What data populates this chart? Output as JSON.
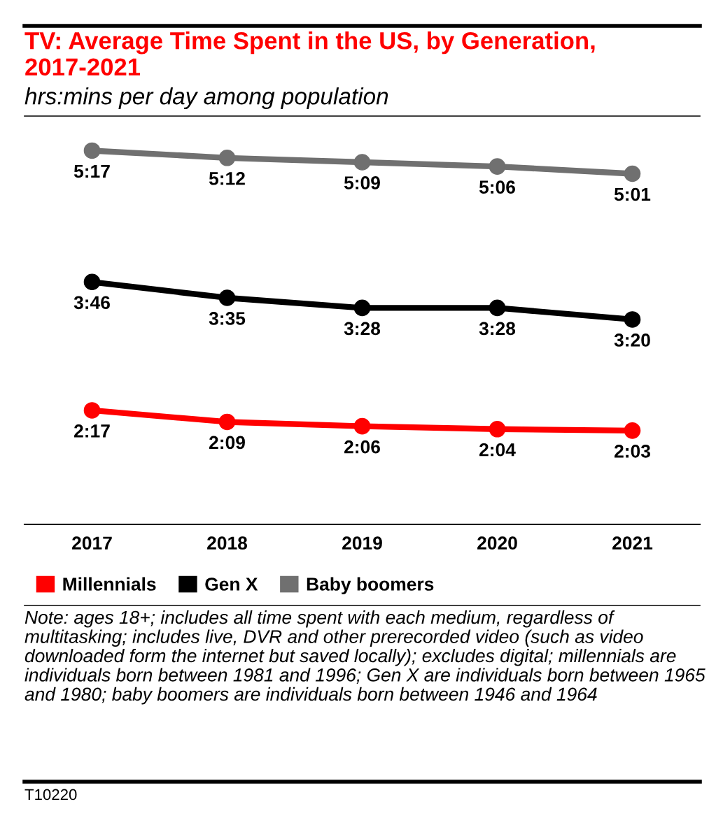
{
  "chart_data": {
    "type": "line",
    "title": "TV: Average Time Spent in the US, by Generation, 2017-2021",
    "subtitle": "hrs:mins per day among population",
    "categories": [
      "2017",
      "2018",
      "2019",
      "2020",
      "2021"
    ],
    "series": [
      {
        "name": "Millennials",
        "color": "#ff0000",
        "values": [
          137,
          129,
          126,
          124,
          123
        ],
        "value_labels": [
          "2:17",
          "2:09",
          "2:06",
          "2:04",
          "2:03"
        ]
      },
      {
        "name": "Gen X",
        "color": "#000000",
        "values": [
          226,
          215,
          208,
          208,
          200
        ],
        "value_labels": [
          "3:46",
          "3:35",
          "3:28",
          "3:28",
          "3:20"
        ]
      },
      {
        "name": "Baby boomers",
        "color": "#707070",
        "values": [
          317,
          312,
          309,
          306,
          301
        ],
        "value_labels": [
          "5:17",
          "5:12",
          "5:09",
          "5:06",
          "5:01"
        ]
      }
    ],
    "ylim": [
      58,
      340
    ],
    "tick_labels": "x",
    "marker": "circle",
    "line_style": "solid",
    "grid": false,
    "legend": "bottom",
    "annotations": [
      "Note: ages 18+; includes all time spent with each medium, regardless of multitasking; includes live, DVR and other prerecorded video (such as video downloaded form the internet but saved locally); excludes digital; millennials are individuals born between 1981 and 1996; Gen X are individuals born between 1965 and 1980; baby boomers are individuals born between 1946 and 1964",
      "T10220"
    ]
  }
}
